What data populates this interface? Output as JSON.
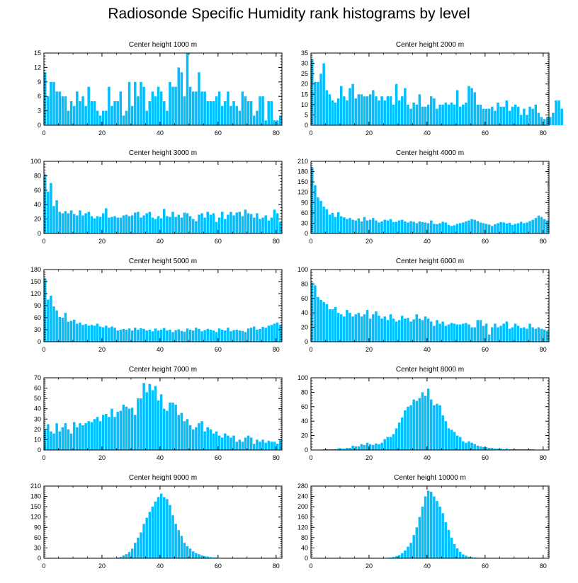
{
  "title": "Radiosonde Specific Humidity rank histograms by level",
  "colors": {
    "bar": "#00bfff",
    "axis": "#000000",
    "background": "#ffffff"
  },
  "chart_data": [
    {
      "type": "bar",
      "title": "Center height 1000 m",
      "ylim": [
        0,
        15
      ],
      "yticks": [
        0,
        3,
        6,
        9,
        12,
        15
      ],
      "xlim": [
        0,
        82
      ],
      "xticks": [
        0,
        20,
        40,
        60,
        80
      ],
      "values": [
        11,
        6,
        9,
        9,
        7,
        7,
        6,
        6,
        3,
        5,
        4,
        7,
        5,
        6,
        4,
        8,
        5,
        5,
        3,
        2,
        3,
        3,
        8,
        4,
        5,
        5,
        7,
        2,
        3,
        9,
        4,
        9,
        6,
        9,
        8,
        3,
        5,
        7,
        6,
        8,
        7,
        5,
        3,
        9,
        8,
        8,
        12,
        11,
        6,
        15,
        8,
        7,
        7,
        11,
        7,
        7,
        5,
        5,
        5,
        6,
        7,
        4,
        5,
        7,
        4,
        5,
        4,
        3,
        7,
        6,
        5,
        5,
        2,
        3,
        6,
        6,
        1,
        5,
        5,
        1,
        1,
        2
      ]
    },
    {
      "type": "bar",
      "title": "Center height 2000 m",
      "ylim": [
        0,
        35
      ],
      "yticks": [
        0,
        5,
        10,
        15,
        20,
        25,
        30,
        35
      ],
      "xlim": [
        0,
        82
      ],
      "xticks": [
        0,
        20,
        40,
        60,
        80
      ],
      "values": [
        32,
        21,
        21,
        25,
        30,
        17,
        15,
        12,
        11,
        13,
        19,
        14,
        12,
        18,
        20,
        13,
        15,
        15,
        14,
        14,
        15,
        17,
        14,
        12,
        14,
        12,
        14,
        14,
        10,
        20,
        12,
        14,
        18,
        10,
        8,
        11,
        10,
        15,
        9,
        9,
        10,
        14,
        13,
        8,
        10,
        10,
        11,
        10,
        11,
        10,
        17,
        9,
        10,
        11,
        19,
        18,
        16,
        10,
        10,
        8,
        8,
        8,
        9,
        7,
        11,
        9,
        9,
        12,
        7,
        9,
        10,
        9,
        5,
        8,
        5,
        9,
        8,
        10,
        6,
        4,
        3,
        4,
        4,
        6,
        12,
        12,
        8
      ]
    },
    {
      "type": "bar",
      "title": "Center height 3000 m",
      "ylim": [
        0,
        100
      ],
      "yticks": [
        0,
        20,
        40,
        60,
        80,
        100
      ],
      "xlim": [
        0,
        82
      ],
      "xticks": [
        0,
        20,
        40,
        60,
        80
      ],
      "values": [
        82,
        58,
        70,
        38,
        46,
        30,
        28,
        31,
        28,
        32,
        27,
        25,
        32,
        25,
        28,
        30,
        24,
        21,
        24,
        23,
        28,
        35,
        22,
        23,
        24,
        22,
        22,
        25,
        26,
        24,
        25,
        29,
        30,
        22,
        25,
        28,
        30,
        22,
        20,
        24,
        21,
        34,
        24,
        23,
        30,
        23,
        26,
        22,
        29,
        28,
        24,
        20,
        17,
        26,
        28,
        22,
        30,
        26,
        28,
        16,
        22,
        30,
        20,
        26,
        30,
        25,
        29,
        30,
        24,
        33,
        28,
        27,
        22,
        28,
        20,
        22,
        25,
        18,
        22,
        33,
        28,
        16
      ]
    },
    {
      "type": "bar",
      "title": "Center height 4000 m",
      "ylim": [
        0,
        210
      ],
      "yticks": [
        0,
        30,
        60,
        90,
        120,
        150,
        180,
        210
      ],
      "xlim": [
        0,
        82
      ],
      "xticks": [
        0,
        20,
        40,
        60,
        80
      ],
      "values": [
        192,
        140,
        105,
        95,
        78,
        70,
        55,
        60,
        48,
        62,
        50,
        47,
        42,
        45,
        40,
        38,
        44,
        35,
        48,
        38,
        40,
        45,
        38,
        32,
        35,
        40,
        38,
        42,
        33,
        34,
        38,
        40,
        35,
        32,
        36,
        34,
        30,
        35,
        33,
        32,
        30,
        38,
        28,
        27,
        30,
        34,
        32,
        25,
        22,
        24,
        28,
        30,
        32,
        35,
        38,
        42,
        40,
        36,
        32,
        30,
        28,
        26,
        22,
        27,
        30,
        33,
        32,
        29,
        31,
        25,
        28,
        30,
        34,
        30,
        32,
        36,
        40,
        45,
        52,
        48,
        42,
        38
      ]
    },
    {
      "type": "bar",
      "title": "Center height 5000 m",
      "ylim": [
        0,
        180
      ],
      "yticks": [
        0,
        30,
        60,
        90,
        120,
        150,
        180
      ],
      "xlim": [
        0,
        82
      ],
      "xticks": [
        0,
        20,
        40,
        60,
        80
      ],
      "values": [
        158,
        105,
        115,
        88,
        78,
        62,
        60,
        72,
        50,
        52,
        55,
        45,
        48,
        42,
        44,
        40,
        42,
        40,
        45,
        38,
        36,
        40,
        35,
        38,
        35,
        28,
        30,
        32,
        30,
        33,
        28,
        35,
        30,
        34,
        32,
        28,
        30,
        26,
        33,
        28,
        30,
        34,
        28,
        30,
        24,
        29,
        31,
        27,
        25,
        33,
        30,
        28,
        35,
        32,
        26,
        29,
        32,
        30,
        28,
        24,
        33,
        30,
        28,
        35,
        26,
        29,
        30,
        28,
        27,
        24,
        33,
        35,
        38,
        30,
        32,
        37,
        35,
        40,
        42,
        45,
        48,
        42
      ]
    },
    {
      "type": "bar",
      "title": "Center height 6000 m",
      "ylim": [
        0,
        100
      ],
      "yticks": [
        0,
        20,
        40,
        60,
        80,
        100
      ],
      "xlim": [
        0,
        82
      ],
      "xticks": [
        0,
        20,
        40,
        60,
        80
      ],
      "values": [
        82,
        78,
        62,
        58,
        55,
        52,
        45,
        45,
        48,
        40,
        38,
        35,
        44,
        40,
        35,
        38,
        40,
        35,
        38,
        44,
        32,
        38,
        42,
        36,
        32,
        35,
        30,
        38,
        32,
        28,
        30,
        36,
        32,
        33,
        28,
        31,
        38,
        32,
        30,
        35,
        32,
        28,
        22,
        30,
        25,
        28,
        22,
        24,
        26,
        25,
        24,
        24,
        25,
        26,
        24,
        20,
        20,
        30,
        30,
        22,
        25,
        10,
        20,
        25,
        20,
        22,
        25,
        28,
        18,
        20,
        25,
        22,
        19,
        20,
        18,
        25,
        20,
        18,
        20,
        18,
        17,
        15
      ]
    },
    {
      "type": "bar",
      "title": "Center height 7000 m",
      "ylim": [
        0,
        70
      ],
      "yticks": [
        0,
        10,
        20,
        30,
        40,
        50,
        60,
        70
      ],
      "xlim": [
        0,
        82
      ],
      "xticks": [
        0,
        20,
        40,
        60,
        80
      ],
      "values": [
        20,
        25,
        18,
        16,
        26,
        18,
        22,
        26,
        20,
        16,
        27,
        22,
        26,
        24,
        26,
        28,
        27,
        30,
        32,
        28,
        34,
        35,
        32,
        40,
        32,
        37,
        38,
        44,
        42,
        40,
        41,
        34,
        50,
        50,
        65,
        56,
        64,
        58,
        62,
        48,
        54,
        40,
        38,
        46,
        46,
        44,
        34,
        36,
        28,
        30,
        24,
        20,
        22,
        26,
        28,
        18,
        22,
        20,
        16,
        18,
        14,
        12,
        16,
        14,
        12,
        14,
        8,
        10,
        8,
        12,
        14,
        12,
        6,
        10,
        8,
        10,
        7,
        9,
        8,
        8,
        6,
        10
      ]
    },
    {
      "type": "bar",
      "title": "Center height 8000 m",
      "ylim": [
        0,
        100
      ],
      "yticks": [
        0,
        20,
        40,
        60,
        80,
        100
      ],
      "xlim": [
        0,
        82
      ],
      "xticks": [
        0,
        20,
        40,
        60,
        80
      ],
      "values": [
        0,
        0,
        0,
        0,
        1,
        1,
        1,
        1,
        1,
        2,
        2,
        2,
        3,
        3,
        6,
        5,
        5,
        8,
        7,
        10,
        8,
        7,
        9,
        8,
        10,
        15,
        18,
        18,
        22,
        30,
        38,
        45,
        55,
        60,
        62,
        70,
        68,
        72,
        80,
        75,
        85,
        70,
        62,
        64,
        62,
        48,
        40,
        30,
        28,
        25,
        20,
        18,
        12,
        10,
        12,
        10,
        8,
        6,
        5,
        4,
        4,
        3,
        3,
        2,
        2,
        2,
        1,
        2,
        1,
        1,
        1,
        1,
        1,
        1,
        1,
        1,
        1,
        0,
        0,
        0,
        0,
        0
      ]
    },
    {
      "type": "bar",
      "title": "Center height 9000 m",
      "ylim": [
        0,
        210
      ],
      "yticks": [
        0,
        30,
        60,
        90,
        120,
        150,
        180,
        210
      ],
      "xlim": [
        0,
        82
      ],
      "xticks": [
        0,
        20,
        40,
        60,
        80
      ],
      "values": [
        0,
        0,
        0,
        0,
        0,
        0,
        0,
        0,
        0,
        0,
        0,
        0,
        0,
        0,
        0,
        0,
        0,
        0,
        0,
        0,
        0,
        0,
        0,
        0,
        1,
        2,
        4,
        8,
        12,
        18,
        28,
        45,
        60,
        75,
        100,
        118,
        135,
        150,
        165,
        178,
        188,
        178,
        172,
        155,
        125,
        100,
        82,
        65,
        45,
        35,
        28,
        20,
        15,
        12,
        8,
        6,
        5,
        3,
        2,
        2,
        1,
        1,
        1,
        0,
        0,
        0,
        0,
        0,
        0,
        0,
        0,
        0,
        0,
        0,
        0,
        0,
        0,
        0,
        0,
        0,
        0,
        0
      ]
    },
    {
      "type": "bar",
      "title": "Center height 10000 m",
      "ylim": [
        0,
        280
      ],
      "yticks": [
        0,
        40,
        80,
        120,
        160,
        200,
        240,
        280
      ],
      "xlim": [
        0,
        82
      ],
      "xticks": [
        0,
        20,
        40,
        60,
        80
      ],
      "values": [
        0,
        0,
        0,
        0,
        0,
        0,
        0,
        0,
        0,
        0,
        0,
        0,
        0,
        0,
        0,
        0,
        0,
        0,
        0,
        0,
        0,
        0,
        0,
        0,
        0,
        1,
        2,
        3,
        5,
        8,
        12,
        20,
        30,
        45,
        60,
        90,
        120,
        160,
        200,
        240,
        262,
        258,
        240,
        222,
        200,
        175,
        140,
        110,
        80,
        55,
        38,
        25,
        15,
        10,
        6,
        4,
        3,
        2,
        1,
        1,
        1,
        0,
        0,
        0,
        0,
        0,
        0,
        0,
        0,
        0,
        0,
        0,
        0,
        0,
        0,
        0,
        0,
        0,
        0,
        0,
        0,
        0
      ]
    }
  ]
}
